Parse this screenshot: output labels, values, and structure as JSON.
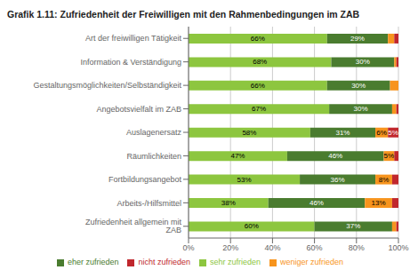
{
  "chart_data": {
    "type": "bar",
    "title": "Grafik 1.11: Zufriedenheit der Freiwilligen mit den Rahmenbedingungen im ZAB",
    "orientation": "horizontal",
    "stacked": true,
    "categories": [
      "Art der freiwilligen Tätigkeit",
      "Information & Verständigung",
      "Gestaltungsmöglichkeiten/Selbständigkeit",
      "Angebotsvielfalt im ZAB",
      "Auslagenersatz",
      "Räumlichkeiten",
      "Fortbildungsangebot",
      "Arbeits-/Hilfsmittel",
      "Zufriedenheit allgemein mit ZAB"
    ],
    "series": [
      {
        "name": "sehr zufrieden",
        "color": "#8dc63f",
        "values": [
          66,
          68,
          66,
          67,
          58,
          47,
          53,
          38,
          60
        ],
        "value_labels": [
          "66%",
          "68%",
          "66%",
          "67%",
          "58%",
          "47%",
          "53%",
          "38%",
          "60%"
        ]
      },
      {
        "name": "eher zufrieden",
        "color": "#4a7c2f",
        "values": [
          29,
          30,
          30,
          30,
          31,
          46,
          36,
          46,
          37
        ],
        "value_labels": [
          "29%",
          "30%",
          "30%",
          "30%",
          "31%",
          "46%",
          "36%",
          "46%",
          "37%"
        ]
      },
      {
        "name": "weniger zufrieden",
        "color": "#f7941d",
        "values": [
          3,
          1,
          4,
          2,
          6,
          5,
          8,
          13,
          2
        ],
        "value_labels": [
          null,
          null,
          null,
          null,
          "6%",
          "5%",
          "8%",
          "13%",
          null
        ]
      },
      {
        "name": "nicht zufrieden",
        "color": "#c0272d",
        "values": [
          2,
          1,
          0,
          1,
          5,
          2,
          3,
          3,
          1
        ],
        "value_labels": [
          null,
          null,
          null,
          null,
          "5%",
          null,
          null,
          null,
          null
        ]
      }
    ],
    "xlim": [
      0,
      100
    ],
    "xticks": [
      {
        "value": 0,
        "label": "0%"
      },
      {
        "value": 20,
        "label": "20%"
      },
      {
        "value": 40,
        "label": "40%"
      },
      {
        "value": 60,
        "label": "60%"
      },
      {
        "value": 80,
        "label": "80%"
      },
      {
        "value": 100,
        "label": "100%"
      }
    ],
    "grid": true,
    "legend": "bottom",
    "data_labels": true
  }
}
